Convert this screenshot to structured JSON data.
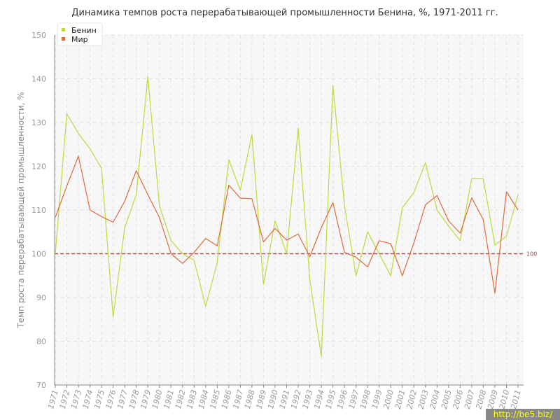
{
  "colors": {
    "benin": "#b8dc3c",
    "world": "#e0683a",
    "reference": "#a05050",
    "plot_bg": "#f7f7f7",
    "grid": "#e2e2e2",
    "axis": "#888888",
    "watermark_bg": "#888888",
    "watermark_text": "#ffff00"
  },
  "watermark": "http://be5.biz/",
  "chart_data": {
    "type": "line",
    "title": "Динамика темпов роста перерабатывающей промышленности Бенина, %, 1971-2011 гг.",
    "xlabel": "",
    "ylabel": "Темп роста перерабатывающей промышленности, %",
    "ylim": [
      70,
      150
    ],
    "yticks": [
      70,
      80,
      90,
      100,
      110,
      120,
      130,
      140,
      150
    ],
    "grid": true,
    "legend_position": "top-left",
    "reference_line": {
      "value": 100,
      "label": "100"
    },
    "categories": [
      "1971",
      "1972",
      "1973",
      "1974",
      "1975",
      "1976",
      "1977",
      "1978",
      "1979",
      "1980",
      "1981",
      "1982",
      "1983",
      "1984",
      "1985",
      "1986",
      "1987",
      "1988",
      "1989",
      "1990",
      "1991",
      "1992",
      "1993",
      "1994",
      "1995",
      "1996",
      "1997",
      "1998",
      "1999",
      "2000",
      "2001",
      "2002",
      "2003",
      "2004",
      "2005",
      "2006",
      "2007",
      "2008",
      "2009",
      "2010",
      "2011"
    ],
    "series": [
      {
        "name": "Бенин",
        "color": "#b8dc3c",
        "values": [
          100,
          132,
          127.5,
          124,
          119.5,
          85.5,
          106,
          113.5,
          140.5,
          111,
          103,
          100,
          98.5,
          88,
          98,
          121.5,
          114.5,
          127.3,
          93,
          107.5,
          100,
          128.7,
          94,
          76.5,
          138.5,
          111,
          95,
          105,
          100,
          95,
          110.5,
          114,
          120.8,
          110,
          106.3,
          103,
          117.2,
          117.1,
          102,
          104,
          113.5
        ]
      },
      {
        "name": "Мир",
        "color": "#e0683a",
        "values": [
          108.3,
          115.5,
          122.3,
          110,
          108.5,
          107.2,
          112,
          119,
          113.5,
          108.3,
          100,
          97.8,
          100.3,
          103.5,
          101.8,
          115.7,
          112.7,
          112.6,
          102.7,
          105.8,
          103.1,
          104.5,
          99.3,
          106,
          111.7,
          100.3,
          99.2,
          97,
          103,
          102.3,
          95,
          102.5,
          111.2,
          113.3,
          107.5,
          104.7,
          112.8,
          107.8,
          91,
          114.2,
          110
        ]
      }
    ]
  }
}
